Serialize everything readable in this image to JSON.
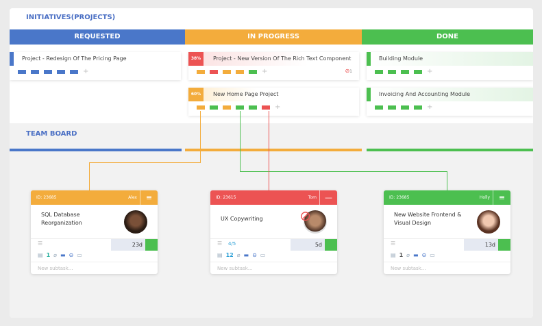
{
  "initiatives_title": "INITIATIVES(PROJECTS)",
  "columns": [
    {
      "label": "REQUESTED",
      "color": "#4a77c9"
    },
    {
      "label": "IN PROGRESS",
      "color": "#f3ac3c"
    },
    {
      "label": "DONE",
      "color": "#4cbf50"
    }
  ],
  "projects": {
    "requested": [
      {
        "title": "Project - Redesign Of The Pricing Page",
        "tasks": [
          "blue",
          "blue",
          "blue",
          "blue",
          "blue"
        ]
      }
    ],
    "in_progress": [
      {
        "title": "Project - New Version Of The Rich Text Component",
        "percent": "38%",
        "blocked_count": "1",
        "tasks": [
          "orange",
          "red",
          "orange",
          "orange",
          "green"
        ]
      },
      {
        "title": "New Home Page Project",
        "percent": "60%",
        "tasks": [
          "orange",
          "green",
          "orange",
          "green",
          "green",
          "red"
        ]
      }
    ],
    "done": [
      {
        "title": "Building Module",
        "tasks": [
          "green",
          "green",
          "green",
          "green"
        ]
      },
      {
        "title": "Invoicing And Accounting Module",
        "tasks": [
          "green",
          "green",
          "green",
          "green"
        ]
      }
    ]
  },
  "team_board_title": "TEAM BOARD",
  "cards": [
    {
      "id": "ID: 23685",
      "owner": "Alex",
      "title": "SQL Database Reorganization",
      "days": "23d",
      "subtasks": "",
      "comments": "1",
      "new_subtask": "New subtask...",
      "color": "#f3ac3c"
    },
    {
      "id": "ID: 23615",
      "owner": "Tom",
      "title": "UX Copywriting",
      "days": "5d",
      "subtasks": "4/5",
      "comments": "12",
      "new_subtask": "New subtask...",
      "color": "#ec5353",
      "blocked": true
    },
    {
      "id": "ID: 23685",
      "owner": "Holly",
      "title": "New Website Frontend & Visual Design",
      "days": "13d",
      "subtasks": "",
      "comments": "1",
      "new_subtask": "New subtask...",
      "color": "#4cbf50"
    }
  ],
  "plus": "+"
}
